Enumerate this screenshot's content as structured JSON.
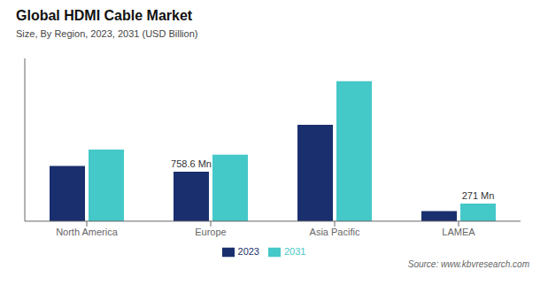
{
  "chart_data": {
    "type": "bar",
    "title": "Global HDMI Cable Market",
    "subtitle": "Size, By Region, 2023, 2031 (USD Billion)",
    "source": "Source: www.kbvresearch.com",
    "categories": [
      "North America",
      "Europe",
      "Asia Pacific",
      "LAMEA"
    ],
    "series": [
      {
        "name": "2023",
        "color": "#1a2f6e",
        "values": [
          0.85,
          0.7586,
          1.48,
          0.155
        ]
      },
      {
        "name": "2031",
        "color": "#45c8c8",
        "values": [
          1.1,
          1.02,
          2.15,
          0.271
        ]
      }
    ],
    "annotations": [
      {
        "text": "758.6 Mn",
        "category": "Europe",
        "series": "2023"
      },
      {
        "text": "271 Mn",
        "category": "LAMEA",
        "series": "2031"
      }
    ],
    "ylim": [
      0,
      2.5
    ],
    "grid": false,
    "legend": "bottom",
    "tick_labels": "x"
  }
}
